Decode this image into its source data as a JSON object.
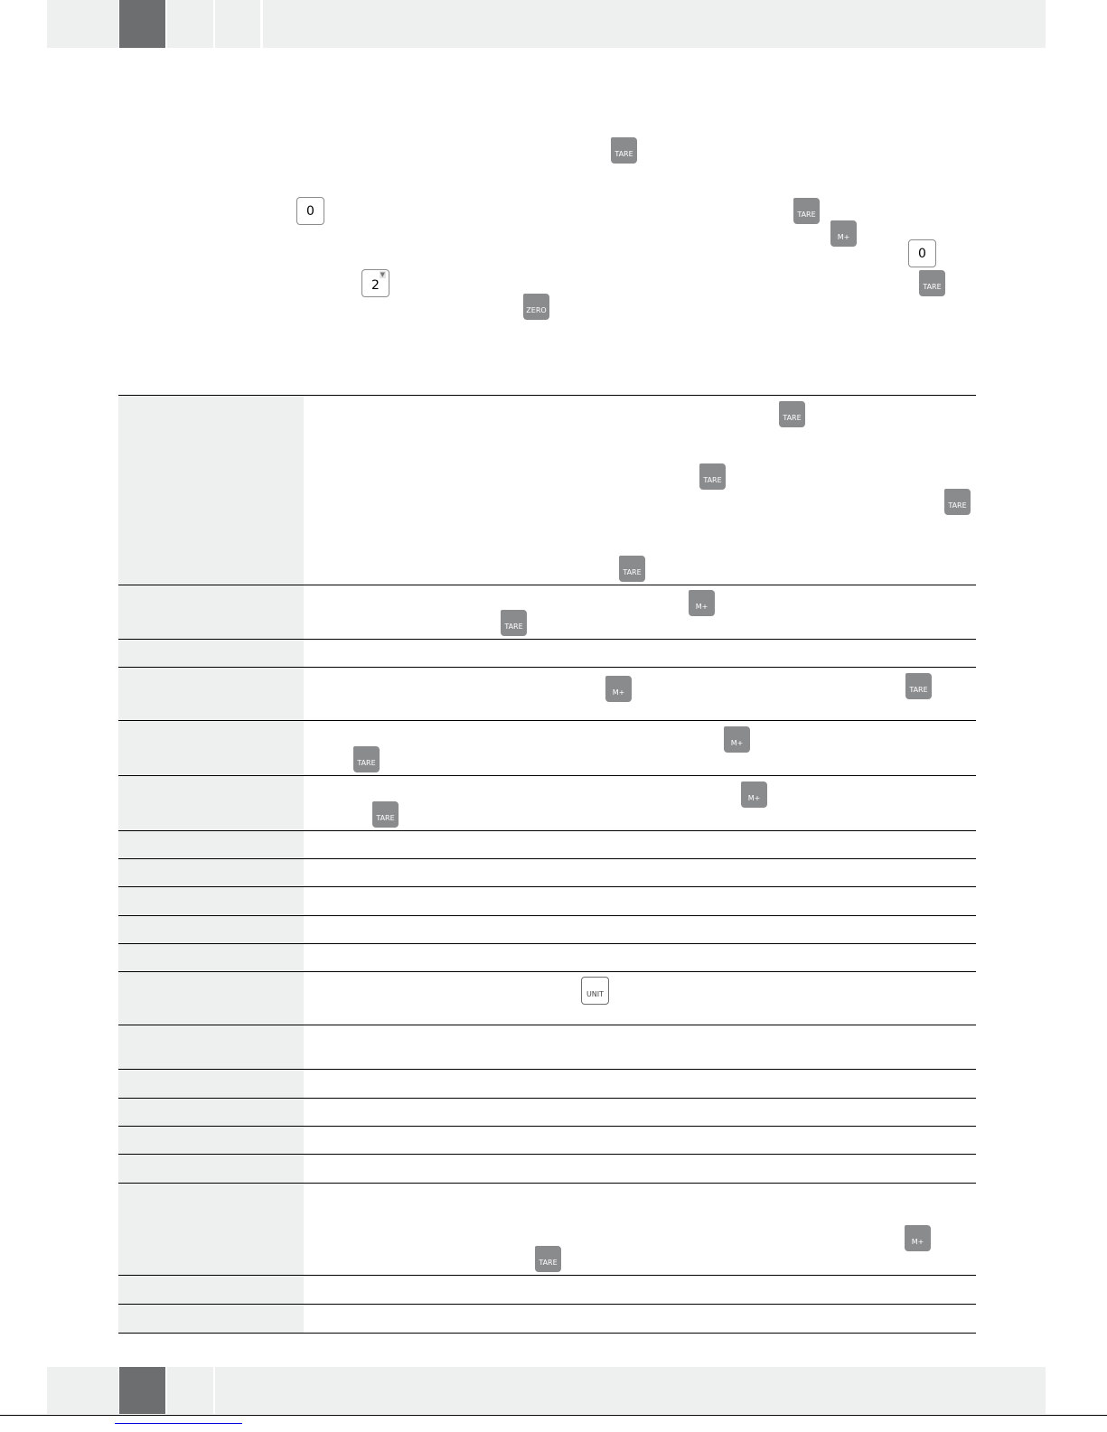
{
  "keys": {
    "tare": "TARE",
    "zero": "ZERO",
    "memory_plus": "M+",
    "unit": "UNIT",
    "digit_zero": "0",
    "digit_two": "2",
    "down_arrow": "▼"
  },
  "colors": {
    "key_gray": "#8a8b8d",
    "header_dark": "#6d6e70",
    "header_light": "#eef0ef"
  }
}
